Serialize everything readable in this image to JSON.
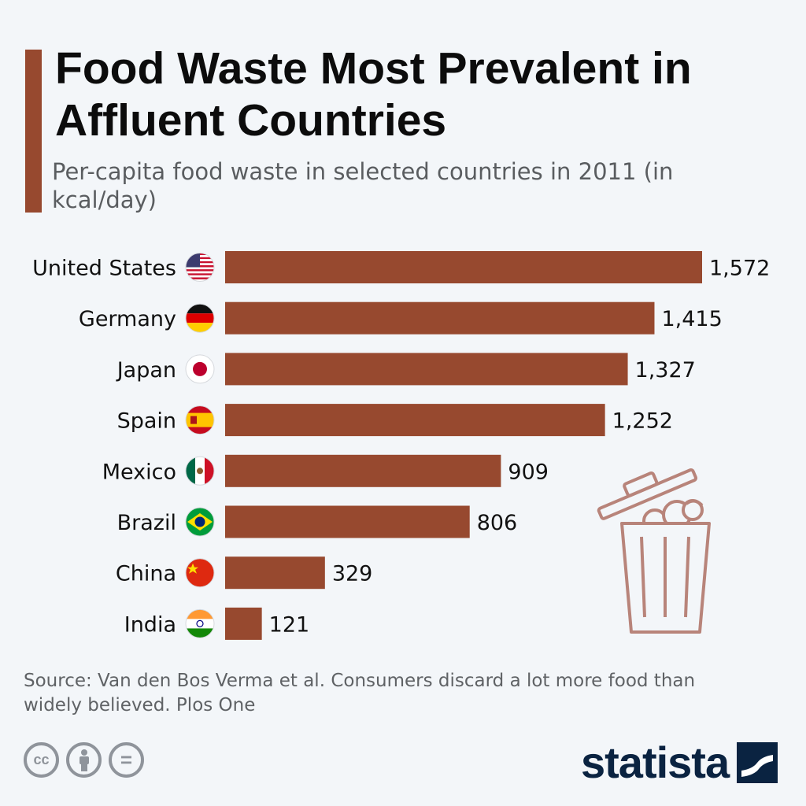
{
  "header": {
    "title": "Food Waste Most Prevalent in Affluent Countries",
    "subtitle": "Per-capita food waste in selected countries in 2011 (in kcal/day)"
  },
  "colors": {
    "bar": "#97492f",
    "accent": "#97492f",
    "brand": "#0a2341"
  },
  "chart_data": {
    "type": "bar",
    "orientation": "horizontal",
    "title": "Food Waste Most Prevalent in Affluent Countries",
    "subtitle": "Per-capita food waste in selected countries in 2011 (in kcal/day)",
    "categories": [
      "United States",
      "Germany",
      "Japan",
      "Spain",
      "Mexico",
      "Brazil",
      "China",
      "India"
    ],
    "value_labels": [
      "1,572",
      "1,415",
      "1,327",
      "1,252",
      "909",
      "806",
      "329",
      "121"
    ],
    "flags": [
      "us-flag-icon",
      "germany-flag-icon",
      "japan-flag-icon",
      "spain-flag-icon",
      "mexico-flag-icon",
      "brazil-flag-icon",
      "china-flag-icon",
      "india-flag-icon"
    ],
    "values": [
      1572,
      1415,
      1327,
      1252,
      909,
      806,
      329,
      121
    ],
    "unit": "kcal/day",
    "xlim": [
      0,
      1572
    ],
    "grid": false,
    "legend": "none"
  },
  "footer": {
    "source": "Source: Van den Bos Verma et al. Consumers discard a lot more food than widely believed. Plos One",
    "cc_icons": [
      "cc-icon",
      "attribution-icon",
      "no-derivatives-icon"
    ],
    "cc_label": "cc",
    "nd_label": "=",
    "brand": "statista"
  },
  "illustration": {
    "icon": "trash-can-icon"
  }
}
